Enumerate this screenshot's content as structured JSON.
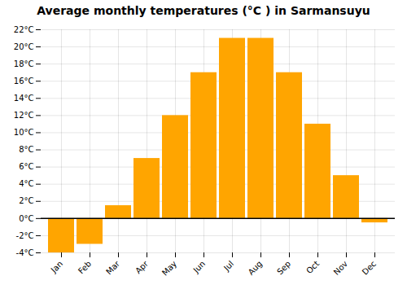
{
  "chart_data": {
    "type": "bar",
    "title": "Average monthly temperatures (°C ) in Sarmansuyu",
    "categories": [
      "Jan",
      "Feb",
      "Mar",
      "Apr",
      "May",
      "Jun",
      "Jul",
      "Aug",
      "Sep",
      "Oct",
      "Nov",
      "Dec"
    ],
    "values": [
      -4,
      -3,
      1.5,
      7,
      12,
      17,
      21,
      21,
      17,
      11,
      5,
      -0.5
    ],
    "color": "#FFA500",
    "ylim": [
      -4,
      22
    ],
    "yticks": [
      {
        "value": -4,
        "label": "-4°C"
      },
      {
        "value": -2,
        "label": "-2°C"
      },
      {
        "value": 0,
        "label": "0°C"
      },
      {
        "value": 2,
        "label": "2°C"
      },
      {
        "value": 4,
        "label": "4°C"
      },
      {
        "value": 6,
        "label": "6°C"
      },
      {
        "value": 8,
        "label": "8°C"
      },
      {
        "value": 10,
        "label": "10°C"
      },
      {
        "value": 12,
        "label": "12°C"
      },
      {
        "value": 14,
        "label": "14°C"
      },
      {
        "value": 16,
        "label": "16°C"
      },
      {
        "value": 18,
        "label": "18°C"
      },
      {
        "value": 20,
        "label": "20°C"
      },
      {
        "value": 22,
        "label": "22°C"
      }
    ],
    "grid": true
  }
}
